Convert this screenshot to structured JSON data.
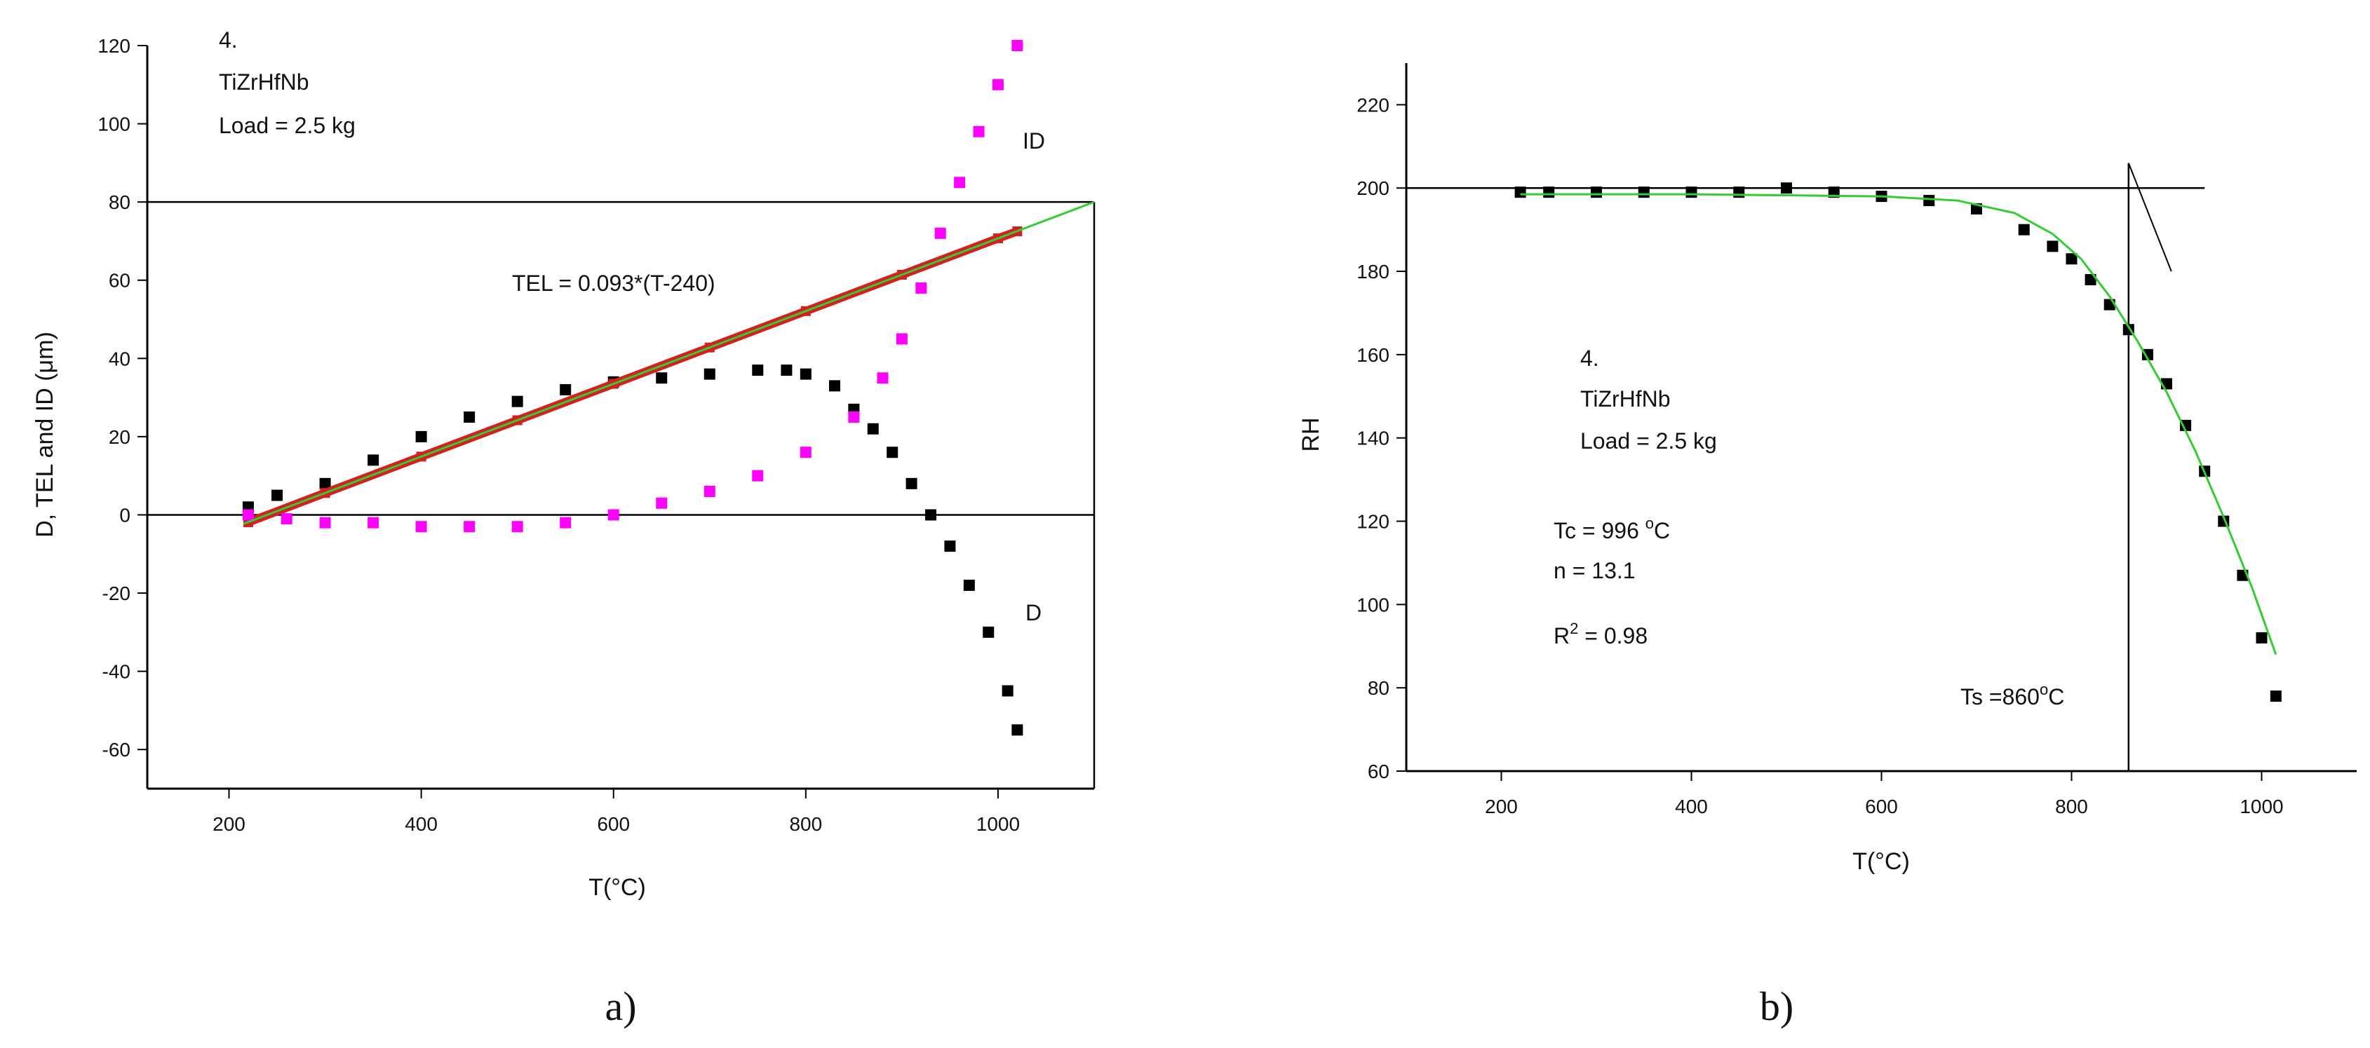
{
  "chart_data": [
    {
      "type": "scatter",
      "panel_caption": "a)",
      "xlabel": "T(°C)",
      "ylabel": "D, TEL and ID (μm)",
      "xlim": [
        115,
        1100
      ],
      "ylim": [
        -70,
        120
      ],
      "x_ticks": [
        200,
        400,
        600,
        800,
        1000
      ],
      "y_ticks": [
        -60,
        -40,
        -20,
        0,
        20,
        40,
        60,
        80,
        100,
        120
      ],
      "grid": false,
      "annotations": {
        "sample_number": "4.",
        "alloy": "TiZrHfNb",
        "load": "Load = 2.5 kg",
        "tel_equation": "TEL = 0.093*(T-240)",
        "label_id": "ID",
        "label_d": "D"
      },
      "reference_lines": {
        "horizontal_y": [
          0,
          80
        ],
        "vertical_x": [
          1100
        ]
      },
      "fit_line": {
        "color": "#33cc33",
        "x": [
          215,
          1100
        ],
        "y": [
          -2.3,
          80
        ]
      },
      "series": [
        {
          "key": "D",
          "color": "#000000",
          "marker": "square",
          "x": [
            220,
            250,
            300,
            350,
            400,
            450,
            500,
            550,
            600,
            650,
            700,
            750,
            780,
            800,
            830,
            850,
            870,
            890,
            910,
            930,
            950,
            970,
            990,
            1010,
            1020
          ],
          "y": [
            2,
            5,
            8,
            14,
            20,
            25,
            29,
            32,
            34,
            35,
            36,
            37,
            37,
            36,
            33,
            27,
            22,
            16,
            8,
            0,
            -8,
            -18,
            -30,
            -45,
            -55
          ]
        },
        {
          "key": "TEL",
          "color": "#d42020",
          "marker": "square",
          "x": [
            220,
            300,
            400,
            500,
            600,
            700,
            800,
            900,
            1000,
            1020
          ],
          "y": [
            -1.9,
            5.6,
            14.9,
            24.2,
            33.5,
            42.8,
            52.1,
            61.4,
            70.7,
            72.5
          ]
        },
        {
          "key": "ID",
          "color": "#ff00ff",
          "marker": "square",
          "x": [
            220,
            260,
            300,
            350,
            400,
            450,
            500,
            550,
            600,
            650,
            700,
            750,
            800,
            850,
            880,
            900,
            920,
            940,
            960,
            980,
            1000,
            1020
          ],
          "y": [
            0,
            -1,
            -2,
            -2,
            -3,
            -3,
            -3,
            -2,
            0,
            3,
            6,
            10,
            16,
            25,
            35,
            45,
            58,
            72,
            85,
            98,
            110,
            120
          ]
        }
      ]
    },
    {
      "type": "scatter",
      "panel_caption": "b)",
      "xlabel": "T(°C)",
      "ylabel": "RH",
      "xlim": [
        100,
        1100
      ],
      "ylim": [
        60,
        230
      ],
      "x_ticks": [
        200,
        400,
        600,
        800,
        1000
      ],
      "y_ticks": [
        60,
        80,
        100,
        120,
        140,
        160,
        180,
        200,
        220
      ],
      "grid": false,
      "annotations": {
        "sample_number": "4.",
        "alloy": "TiZrHfNb",
        "load": "Load = 2.5 kg",
        "tc": "Tc = 996 °C",
        "n": "n = 13.1",
        "r2": "R2 = 0.98",
        "ts": "Ts =860°C"
      },
      "reference_lines": {
        "horizontal_y": [
          200
        ],
        "vertical_x": [
          860
        ]
      },
      "tangent_line": {
        "x": [
          860,
          905
        ],
        "y": [
          206,
          180
        ]
      },
      "series": [
        {
          "key": "RH",
          "color": "#000000",
          "marker": "square",
          "x": [
            220,
            250,
            300,
            350,
            400,
            450,
            500,
            550,
            600,
            650,
            700,
            750,
            780,
            800,
            820,
            840,
            860,
            880,
            900,
            920,
            940,
            960,
            980,
            1000,
            1015
          ],
          "y": [
            199,
            199,
            199,
            199,
            199,
            199,
            200,
            199,
            198,
            197,
            195,
            190,
            186,
            183,
            178,
            172,
            166,
            160,
            153,
            143,
            132,
            120,
            107,
            92,
            78
          ]
        },
        {
          "key": "fit",
          "color": "#33cc33",
          "marker": "line",
          "x": [
            220,
            400,
            600,
            680,
            740,
            780,
            810,
            840,
            870,
            900,
            930,
            960,
            990,
            1015
          ],
          "y": [
            198.5,
            198.5,
            198,
            197,
            194,
            189,
            183,
            174,
            163,
            151,
            137,
            121,
            104,
            88
          ]
        }
      ]
    }
  ]
}
